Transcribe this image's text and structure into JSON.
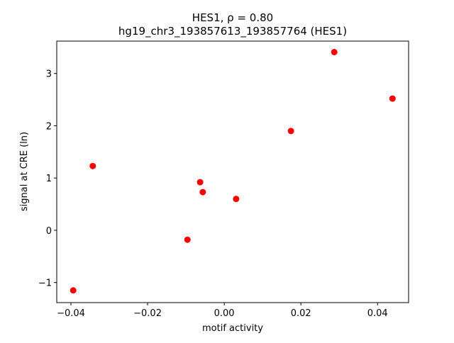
{
  "chart_data": {
    "type": "scatter",
    "title": "HES1, ρ = 0.80",
    "subtitle": "hg19_chr3_193857613_193857764 (HES1)",
    "x_label": "motif activity",
    "y_label": "signal at CRE (ln)",
    "color": "#ff0000",
    "x": [
      -0.0394,
      -0.0343,
      -0.0096,
      -0.0063,
      -0.0056,
      0.0031,
      0.0174,
      0.0287,
      0.0439
    ],
    "values": [
      -1.15,
      1.23,
      -0.18,
      0.92,
      0.73,
      0.6,
      1.9,
      3.41,
      2.52
    ],
    "xlim": [
      -0.0437,
      0.0481
    ],
    "ylim": [
      -1.384,
      3.62
    ],
    "xticks": [
      {
        "value": -0.04,
        "label": "−0.04"
      },
      {
        "value": -0.02,
        "label": "−0.02"
      },
      {
        "value": 0,
        "label": "0.00"
      },
      0.02,
      0.04
    ],
    "yticks": [
      {
        "value": -1,
        "label": "−1"
      },
      0,
      1,
      2,
      3
    ]
  }
}
